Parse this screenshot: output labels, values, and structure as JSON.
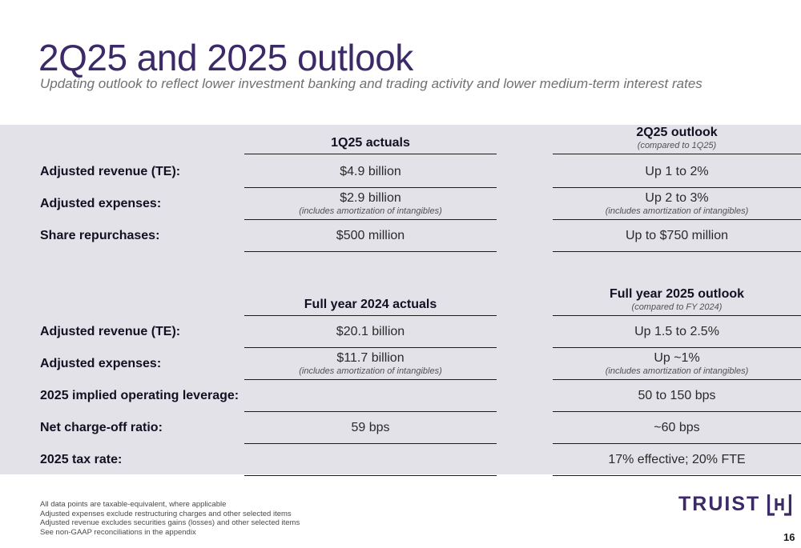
{
  "title": "2Q25 and 2025 outlook",
  "subtitle": "Updating outlook to reflect lower investment banking and trading activity and lower medium-term interest rates",
  "quarterly": {
    "col_a_header": "1Q25 actuals",
    "col_b_header": "2Q25 outlook",
    "col_b_note": "(compared to 1Q25)",
    "rows": [
      {
        "label": "Adjusted revenue (TE):",
        "a": "$4.9 billion",
        "a_note": "",
        "b": "Up 1 to 2%",
        "b_note": ""
      },
      {
        "label": "Adjusted expenses:",
        "a": "$2.9 billion",
        "a_note": "(includes amortization of intangibles)",
        "b": "Up 2 to 3%",
        "b_note": "(includes amortization of intangibles)"
      },
      {
        "label": "Share repurchases:",
        "a": "$500 million",
        "a_note": "",
        "b": "Up to $750 million",
        "b_note": ""
      }
    ]
  },
  "annual": {
    "col_a_header": "Full year 2024 actuals",
    "col_b_header": "Full year 2025 outlook",
    "col_b_note": "(compared to FY 2024)",
    "rows": [
      {
        "label": "Adjusted revenue (TE):",
        "a": "$20.1 billion",
        "a_note": "",
        "b": "Up 1.5 to 2.5%",
        "b_note": ""
      },
      {
        "label": "Adjusted expenses:",
        "a": "$11.7 billion",
        "a_note": "(includes amortization of intangibles)",
        "b": "Up ~1%",
        "b_note": "(includes amortization of intangibles)"
      },
      {
        "label": "2025 implied operating leverage:",
        "a": "",
        "a_note": "",
        "b": "50 to 150 bps",
        "b_note": ""
      },
      {
        "label": "Net charge-off ratio:",
        "a": "59 bps",
        "a_note": "",
        "b": "~60 bps",
        "b_note": ""
      },
      {
        "label": "2025 tax rate:",
        "a": "",
        "a_note": "",
        "b": "17% effective; 20% FTE",
        "b_note": ""
      }
    ]
  },
  "footnotes": [
    "All data points are taxable-equivalent, where applicable",
    "Adjusted expenses exclude restructuring charges and other selected items",
    "Adjusted revenue excludes securities gains (losses) and other selected items",
    "See non-GAAP reconciliations in the appendix"
  ],
  "logo_text": "TRUIST",
  "logo_icon": "truist-mark-icon",
  "page_number": "16",
  "colors": {
    "brand_purple": "#3c2a68",
    "panel_bg": "#e4e2e9",
    "rule": "#1a1a1a"
  }
}
